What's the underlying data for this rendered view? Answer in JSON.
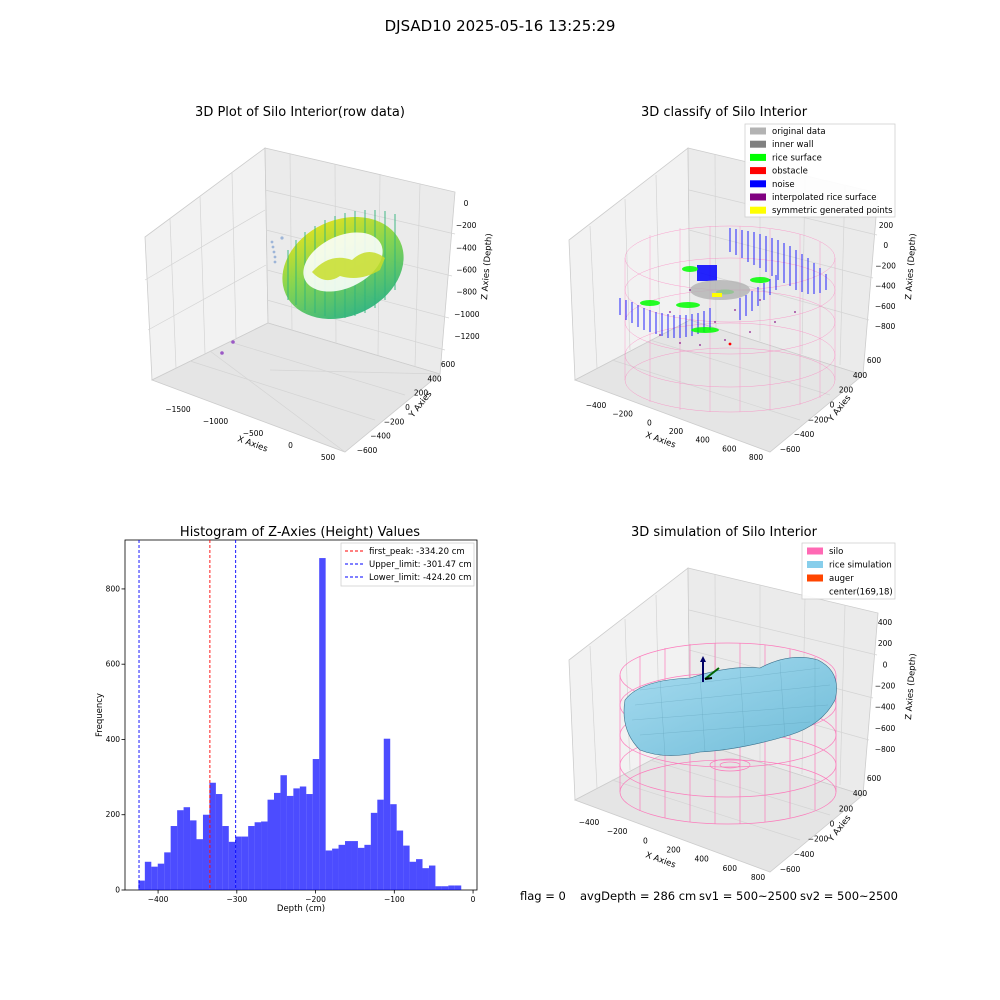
{
  "figure": {
    "suptitle": "DJSAD10 2025-05-16 13:25:29",
    "status": {
      "flag": "flag = 0",
      "avg_depth": "avgDepth = 286 cm",
      "sv1": "sv1 = 500~2500",
      "sv2": "sv2 = 500~2500"
    }
  },
  "panels": {
    "raw": {
      "title": "3D Plot of Silo Interior(row data)",
      "xlabel": "X Axies",
      "ylabel": "Y Axies",
      "zlabel": "Z Axies (Depth)",
      "xticks": [
        "−1500",
        "−1000",
        "−500",
        "0",
        "500"
      ],
      "yticks": [
        "−600",
        "−400",
        "−200",
        "0",
        "200",
        "400",
        "600"
      ],
      "zticks": [
        "0",
        "−200",
        "−400",
        "−600",
        "−800",
        "−1000",
        "−1200"
      ]
    },
    "classify": {
      "title": "3D classify of Silo Interior",
      "xlabel": "X Axies",
      "ylabel": "Y Axies",
      "zlabel": "Z Axies (Depth)",
      "xticks": [
        "−400",
        "−200",
        "0",
        "200",
        "400",
        "600",
        "800"
      ],
      "yticks": [
        "−600",
        "−400",
        "−200",
        "0",
        "200",
        "400",
        "600"
      ],
      "zticks": [
        "200",
        "0",
        "−200",
        "−400",
        "−600",
        "−800"
      ],
      "legend": [
        {
          "label": "original data",
          "color": "#b3b3b3"
        },
        {
          "label": "inner wall",
          "color": "#808080"
        },
        {
          "label": "rice surface",
          "color": "#00ff00"
        },
        {
          "label": "obstacle",
          "color": "#ff0000"
        },
        {
          "label": "noise",
          "color": "#0000ff"
        },
        {
          "label": "interpolated rice surface",
          "color": "#800080"
        },
        {
          "label": "symmetric generated points",
          "color": "#ffff00"
        }
      ],
      "z_extra_tick": "0"
    },
    "simulation": {
      "title": "3D simulation of Silo Interior",
      "xlabel": "X Axies",
      "ylabel": "Y Axies",
      "zlabel": "Z Axies (Depth)",
      "xticks": [
        "−400",
        "−200",
        "0",
        "200",
        "400",
        "600",
        "800"
      ],
      "yticks": [
        "−600",
        "−400",
        "−200",
        "0",
        "200",
        "400",
        "600"
      ],
      "zticks": [
        "400",
        "200",
        "0",
        "−200",
        "−400",
        "−600",
        "−800"
      ],
      "legend": [
        {
          "label": "silo",
          "color": "#ff69b4"
        },
        {
          "label": "rice simulation",
          "color": "#87ceeb"
        },
        {
          "label": "auger",
          "color": "#ff4500"
        },
        {
          "label": "center(169,18)",
          "color": ""
        }
      ]
    }
  },
  "chart_data": {
    "type": "bar",
    "title": "Histogram of Z-Axies (Height) Values",
    "xlabel": "Depth (cm)",
    "ylabel": "Frequency",
    "xlim": [
      -442,
      5
    ],
    "ylim": [
      0,
      930
    ],
    "xticks": [
      -400,
      -300,
      -200,
      -100,
      0
    ],
    "xtick_labels": [
      "−400",
      "−300",
      "−200",
      "−100",
      "0"
    ],
    "yticks": [
      0,
      200,
      400,
      600,
      800
    ],
    "bin_start": -425,
    "bin_width": 8.2,
    "values": [
      25,
      75,
      62,
      70,
      100,
      170,
      212,
      220,
      185,
      135,
      200,
      285,
      255,
      170,
      128,
      142,
      142,
      170,
      180,
      182,
      240,
      258,
      305,
      250,
      270,
      275,
      255,
      348,
      882,
      105,
      110,
      120,
      130,
      130,
      112,
      120,
      205,
      240,
      402,
      228,
      158,
      118,
      75,
      82,
      58,
      65,
      10,
      10,
      12,
      12
    ],
    "bar_color": "#0000ff",
    "vlines": [
      {
        "label": "first_peak: -334.20 cm",
        "x": -334.2,
        "color": "#ff0000"
      },
      {
        "label": "Upper_limit: -301.47 cm",
        "x": -301.47,
        "color": "#0000ff"
      },
      {
        "label": "Lower_limit: -424.20 cm",
        "x": -424.2,
        "color": "#0000ff"
      }
    ],
    "legend_position": "upper right",
    "grid": false
  }
}
